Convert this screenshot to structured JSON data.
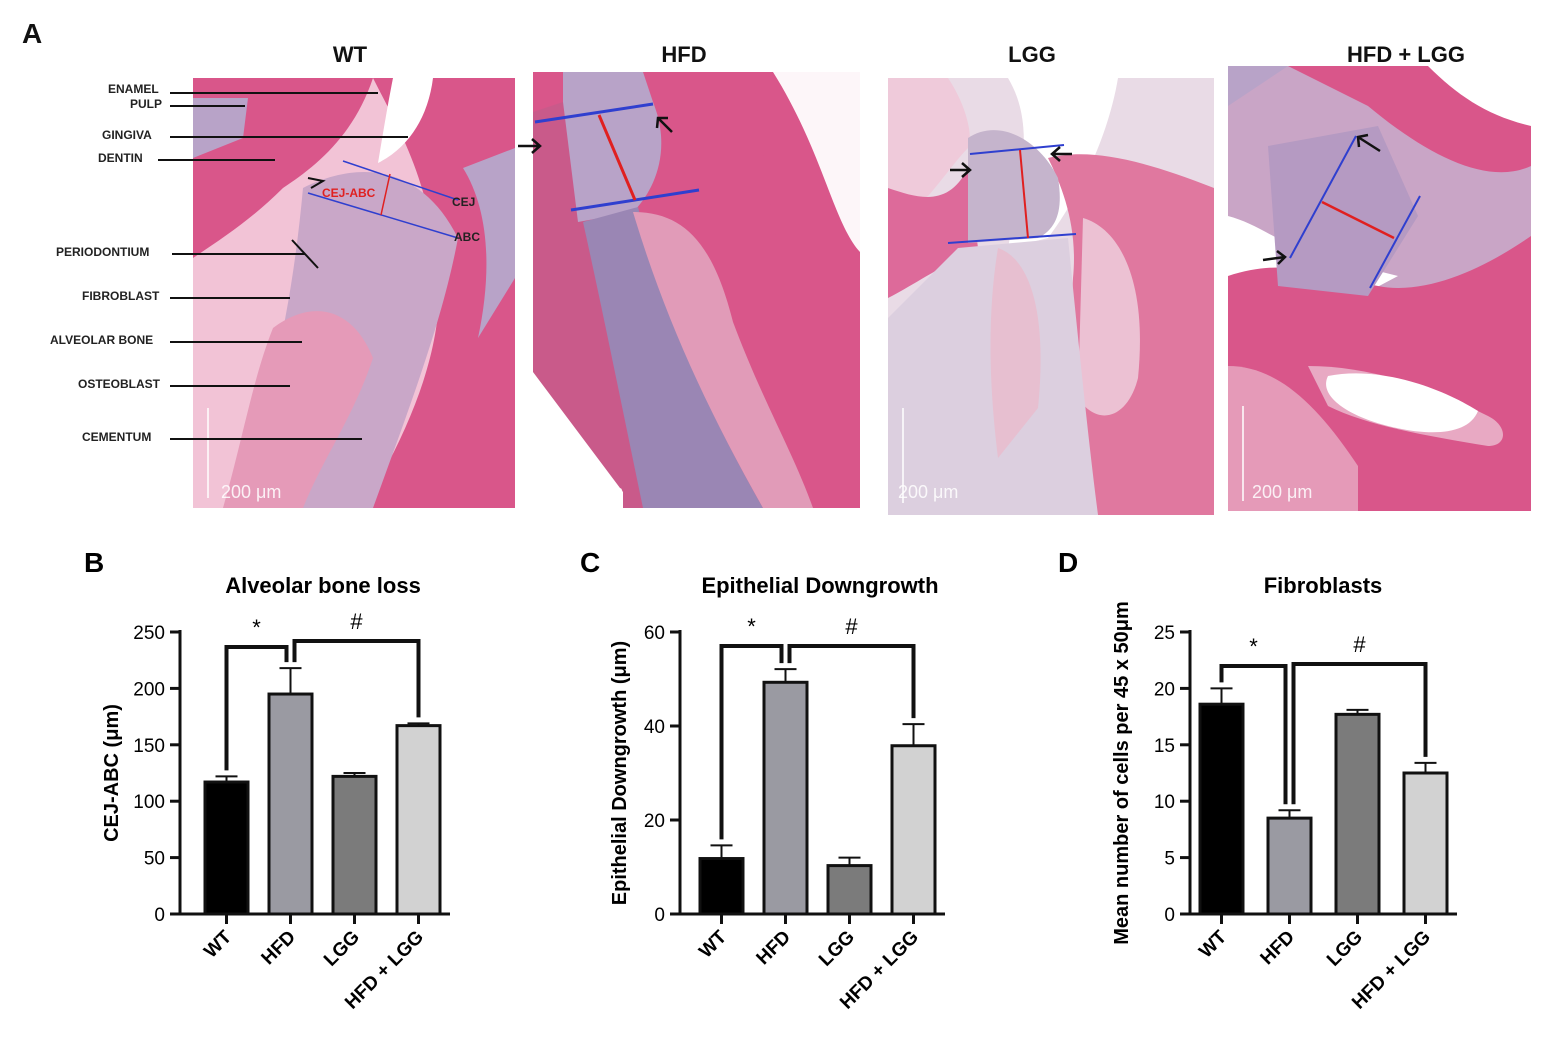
{
  "panel_a": {
    "letter": "A",
    "images": [
      {
        "title": "WT",
        "scale_label": "200 μm"
      },
      {
        "title": "HFD",
        "scale_label": "200 μm"
      },
      {
        "title": "LGG",
        "scale_label": "200 μm"
      },
      {
        "title": "HFD  + LGG",
        "scale_label": "200 μm"
      }
    ],
    "tissue_labels": [
      "ENAMEL",
      "PULP",
      "GINGIVA",
      "DENTIN",
      "PERIODONTIUM",
      "FIBROBLAST",
      "ALVEOLAR BONE",
      "OSTEOBLAST",
      "CEMENTUM"
    ],
    "measure_labels": {
      "cej_abc": "CEJ-ABC",
      "cej": "CEJ",
      "abc": "ABC"
    },
    "colors": {
      "tissue_pink": "#d9568a",
      "tissue_light": "#f2c3d6",
      "stroma": "#b8a3c8",
      "measure_blue": "#2f3fcf",
      "measure_red": "#e02020"
    }
  },
  "chart_data": [
    {
      "letter": "B",
      "type": "bar",
      "title": "Alveolar bone loss",
      "ylabel": "CEJ-ABC (μm)",
      "categories": [
        "WT",
        "HFD",
        "LGG",
        "HFD + LGG"
      ],
      "values": [
        117,
        195,
        122,
        167
      ],
      "errors": [
        5,
        23,
        3,
        2
      ],
      "ylim": [
        0,
        250
      ],
      "yticks": [
        "0",
        "50",
        "100",
        "150",
        "200",
        "250"
      ],
      "colors": [
        "#000000",
        "#9a9aa2",
        "#7b7b7b",
        "#d2d2d2"
      ],
      "sig": [
        {
          "label": "*",
          "from": 0,
          "to": 1
        },
        {
          "label": "#",
          "from": 1,
          "to": 3
        }
      ]
    },
    {
      "letter": "C",
      "type": "bar",
      "title": "Epithelial Downgrowth",
      "ylabel": "Epithelial Downgrowth (μm)",
      "categories": [
        "WT",
        "HFD",
        "LGG",
        "HFD + LGG"
      ],
      "values": [
        11.8,
        49.3,
        10.3,
        35.8
      ],
      "errors": [
        2.8,
        2.8,
        1.7,
        4.6
      ],
      "ylim": [
        0,
        60
      ],
      "yticks": [
        "0",
        "20",
        "40",
        "60"
      ],
      "colors": [
        "#000000",
        "#9a9aa2",
        "#7b7b7b",
        "#d2d2d2"
      ],
      "sig": [
        {
          "label": "*",
          "from": 0,
          "to": 1
        },
        {
          "label": "#",
          "from": 1,
          "to": 3
        }
      ]
    },
    {
      "letter": "D",
      "type": "bar",
      "title": "Fibroblasts",
      "ylabel": "Mean number of cells per 45 x 50μm",
      "categories": [
        "WT",
        "HFD",
        "LGG",
        "HFD + LGG"
      ],
      "values": [
        18.6,
        8.5,
        17.7,
        12.5
      ],
      "errors": [
        1.4,
        0.7,
        0.4,
        0.9
      ],
      "ylim": [
        0,
        25
      ],
      "yticks": [
        "0",
        "5",
        "10",
        "15",
        "20",
        "25"
      ],
      "colors": [
        "#000000",
        "#9a9aa2",
        "#7b7b7b",
        "#d2d2d2"
      ],
      "sig": [
        {
          "label": "*",
          "from": 0,
          "to": 1
        },
        {
          "label": "#",
          "from": 1,
          "to": 3
        }
      ]
    }
  ]
}
